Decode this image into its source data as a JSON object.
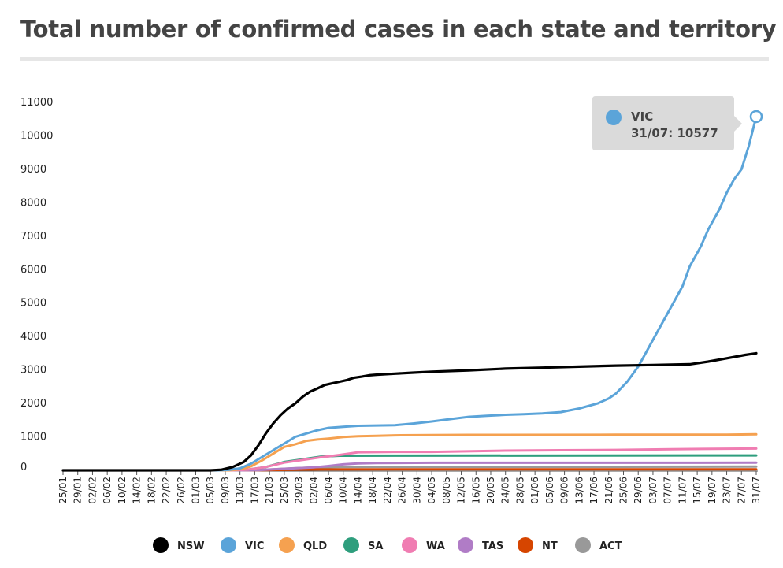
{
  "chart_data": {
    "type": "line",
    "title": "Total number of confirmed cases in each state and territory",
    "xlabel": "",
    "ylabel": "",
    "ylim": [
      0,
      11000
    ],
    "yticks": [
      0,
      1000,
      2000,
      3000,
      4000,
      5000,
      6000,
      7000,
      8000,
      9000,
      10000,
      11000
    ],
    "xticks": [
      "25/01",
      "29/01",
      "02/02",
      "06/02",
      "10/02",
      "14/02",
      "18/02",
      "22/02",
      "26/02",
      "01/03",
      "05/03",
      "09/03",
      "13/03",
      "17/03",
      "21/03",
      "25/03",
      "29/03",
      "02/04",
      "06/04",
      "10/04",
      "14/04",
      "18/04",
      "22/04",
      "26/04",
      "30/04",
      "04/05",
      "08/05",
      "12/05",
      "16/05",
      "20/05",
      "24/05",
      "28/05",
      "01/06",
      "05/06",
      "09/06",
      "13/06",
      "17/06",
      "21/06",
      "25/06",
      "29/06",
      "03/07",
      "07/07",
      "11/07",
      "15/07",
      "19/07",
      "23/07",
      "27/07",
      "31/07"
    ],
    "x_unit": "days since 25/01",
    "series": [
      {
        "name": "ACT",
        "color": "#999999",
        "x": [
          0,
          46,
          52,
          57,
          62,
          68,
          75,
          85,
          100,
          150,
          188
        ],
        "values": [
          0,
          0,
          5,
          30,
          60,
          85,
          100,
          106,
          107,
          107,
          113
        ]
      },
      {
        "name": "NT",
        "color": "#d64500",
        "x": [
          0,
          49,
          55,
          60,
          70,
          90,
          188
        ],
        "values": [
          0,
          0,
          5,
          15,
          27,
          29,
          31
        ]
      },
      {
        "name": "TAS",
        "color": "#b07cc6",
        "x": [
          0,
          48,
          53,
          58,
          63,
          68,
          72,
          76,
          80,
          85,
          100,
          188
        ],
        "values": [
          0,
          0,
          5,
          35,
          62,
          90,
          130,
          180,
          205,
          220,
          226,
          229
        ]
      },
      {
        "name": "SA",
        "color": "#2e9e7d",
        "x": [
          0,
          46,
          50,
          55,
          60,
          65,
          70,
          75,
          90,
          188
        ],
        "values": [
          0,
          0,
          20,
          100,
          250,
          330,
          410,
          435,
          439,
          446
        ]
      },
      {
        "name": "WA",
        "color": "#f07db2",
        "x": [
          0,
          46,
          50,
          55,
          60,
          65,
          70,
          75,
          80,
          90,
          100,
          120,
          135,
          150,
          165,
          180,
          188
        ],
        "values": [
          0,
          0,
          20,
          100,
          230,
          310,
          390,
          460,
          540,
          550,
          552,
          590,
          600,
          610,
          630,
          645,
          650
        ]
      },
      {
        "name": "QLD",
        "color": "#f5a150",
        "x": [
          0,
          45,
          48,
          51,
          54,
          57,
          60,
          63,
          66,
          69,
          72,
          76,
          80,
          85,
          90,
          100,
          110,
          150,
          180,
          188
        ],
        "values": [
          0,
          0,
          30,
          120,
          300,
          500,
          700,
          780,
          880,
          920,
          950,
          995,
          1020,
          1030,
          1045,
          1055,
          1059,
          1065,
          1066,
          1076
        ]
      },
      {
        "name": "VIC",
        "color": "#5ba4d9",
        "x": [
          0,
          42,
          45,
          48,
          51,
          54,
          57,
          60,
          63,
          66,
          69,
          72,
          76,
          80,
          85,
          90,
          95,
          100,
          105,
          110,
          115,
          120,
          125,
          130,
          135,
          140,
          145,
          148,
          150,
          153,
          156,
          158,
          160,
          162,
          165,
          168,
          170,
          173,
          175,
          178,
          180,
          182,
          184,
          186,
          188
        ],
        "values": [
          0,
          0,
          15,
          60,
          200,
          400,
          600,
          800,
          1000,
          1100,
          1200,
          1270,
          1300,
          1330,
          1340,
          1350,
          1400,
          1460,
          1530,
          1600,
          1630,
          1660,
          1680,
          1700,
          1740,
          1850,
          2000,
          2150,
          2300,
          2650,
          3100,
          3500,
          3900,
          4300,
          4900,
          5500,
          6100,
          6700,
          7200,
          7800,
          8300,
          8700,
          9000,
          9700,
          10577
        ]
      },
      {
        "name": "NSW",
        "color": "#000000",
        "x": [
          0,
          40,
          43,
          46,
          49,
          51,
          53,
          55,
          57,
          59,
          61,
          63,
          65,
          67,
          69,
          71,
          73,
          75,
          77,
          79,
          81,
          83,
          85,
          90,
          95,
          100,
          110,
          120,
          130,
          140,
          150,
          160,
          170,
          175,
          180,
          185,
          188
        ],
        "values": [
          0,
          0,
          20,
          100,
          250,
          450,
          750,
          1100,
          1400,
          1650,
          1850,
          2000,
          2200,
          2350,
          2450,
          2550,
          2600,
          2650,
          2700,
          2770,
          2800,
          2840,
          2860,
          2890,
          2920,
          2950,
          2990,
          3040,
          3070,
          3100,
          3130,
          3150,
          3170,
          3250,
          3350,
          3450,
          3500
        ]
      }
    ],
    "legend": [
      "NSW",
      "VIC",
      "QLD",
      "SA",
      "WA",
      "TAS",
      "NT",
      "ACT"
    ],
    "legend_position": "bottom",
    "tooltip": {
      "series": "VIC",
      "label": "VIC",
      "text": "31/07: 10577"
    }
  }
}
